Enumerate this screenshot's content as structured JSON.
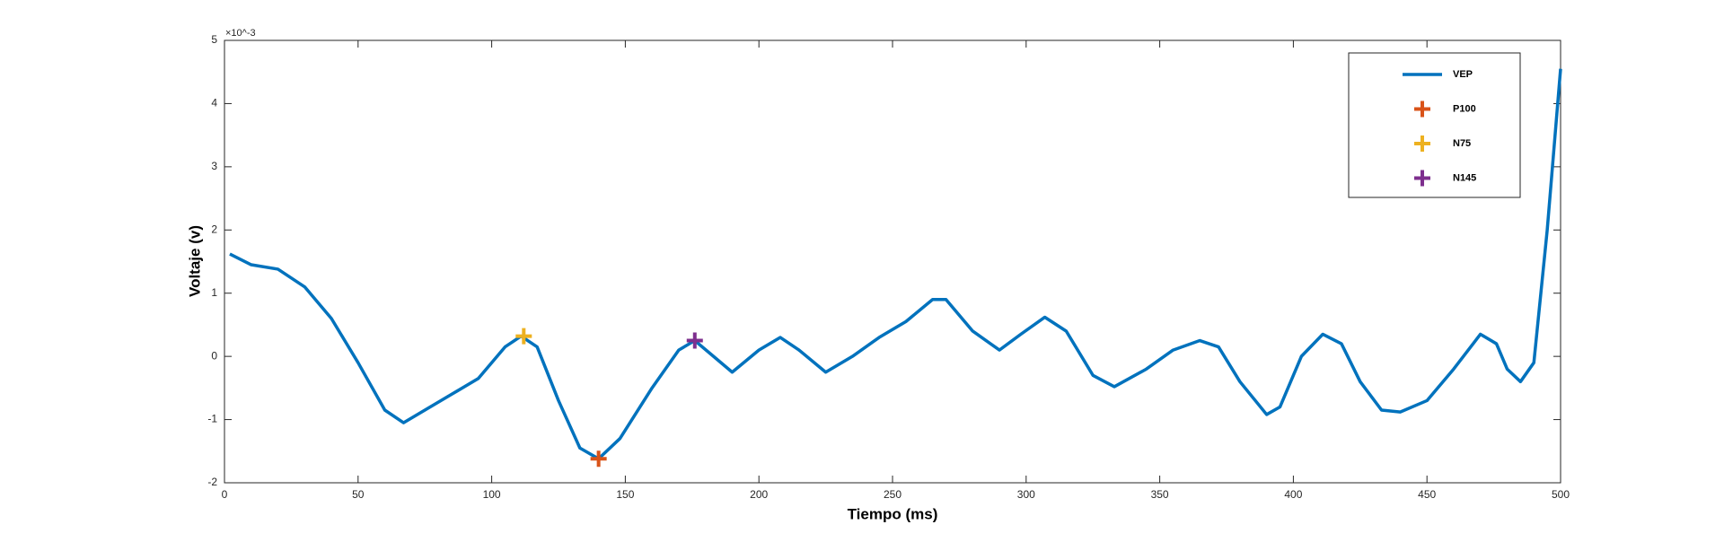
{
  "chart_data": {
    "type": "line",
    "xlabel": "Tiempo (ms)",
    "ylabel": "Voltaje (v)",
    "y_exponent": "×10^-3",
    "xlim": [
      0,
      500
    ],
    "xticks": [
      0,
      50,
      100,
      150,
      200,
      250,
      300,
      350,
      400,
      450,
      500
    ],
    "ylim": [
      -2,
      5
    ],
    "yticks": [
      -2,
      -1,
      0,
      1,
      2,
      3,
      4,
      5
    ],
    "legend": "top-right",
    "series": [
      {
        "name": "VEP",
        "color": "#0072bd",
        "style": "line",
        "x": [
          2,
          10,
          20,
          30,
          40,
          50,
          60,
          67,
          75,
          85,
          95,
          105,
          111,
          117,
          125,
          133,
          140,
          148,
          160,
          170,
          176,
          183,
          190,
          200,
          208,
          215,
          225,
          235,
          245,
          255,
          265,
          270,
          280,
          290,
          298,
          307,
          315,
          325,
          333,
          345,
          355,
          365,
          372,
          380,
          390,
          395,
          403,
          411,
          418,
          425,
          433,
          440,
          450,
          460,
          470,
          476,
          480,
          485,
          490,
          495,
          500
        ],
        "values": [
          1.62,
          1.45,
          1.38,
          1.1,
          0.6,
          -0.1,
          -0.85,
          -1.05,
          -0.85,
          -0.6,
          -0.35,
          0.15,
          0.32,
          0.15,
          -0.7,
          -1.45,
          -1.62,
          -1.3,
          -0.5,
          0.1,
          0.25,
          0.0,
          -0.25,
          0.1,
          0.3,
          0.1,
          -0.25,
          0.0,
          0.3,
          0.55,
          0.9,
          0.9,
          0.4,
          0.1,
          0.35,
          0.62,
          0.4,
          -0.3,
          -0.48,
          -0.2,
          0.1,
          0.25,
          0.15,
          -0.4,
          -0.92,
          -0.8,
          0.0,
          0.35,
          0.2,
          -0.4,
          -0.85,
          -0.88,
          -0.7,
          -0.2,
          0.35,
          0.2,
          -0.2,
          -0.4,
          -0.1,
          2.0,
          4.55
        ]
      },
      {
        "name": "P100",
        "color": "#d95319",
        "style": "plus",
        "x": [
          140
        ],
        "values": [
          -1.62
        ]
      },
      {
        "name": "N75",
        "color": "#edb120",
        "style": "plus",
        "x": [
          112
        ],
        "values": [
          0.32
        ]
      },
      {
        "name": "N145",
        "color": "#7e2f8e",
        "style": "plus",
        "x": [
          176
        ],
        "values": [
          0.25
        ]
      }
    ]
  }
}
